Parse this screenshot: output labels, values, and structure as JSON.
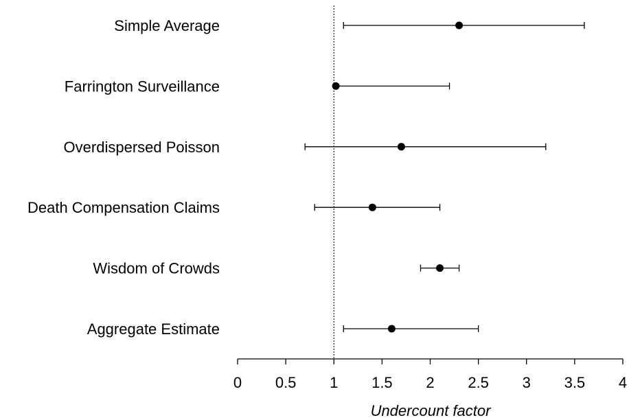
{
  "chart_data": {
    "type": "scatter",
    "title": "",
    "xlabel": "Undercount factor",
    "ylabel": "",
    "xlim": [
      0,
      4
    ],
    "xticks": [
      "0",
      "0.5",
      "1",
      "1.5",
      "2",
      "2.5",
      "3",
      "3.5",
      "4"
    ],
    "reference_line_x": 1,
    "grid": false,
    "categories": [
      "Simple Average",
      "Farrington Surveillance",
      "Overdispersed Poisson",
      "Death Compensation Claims",
      "Wisdom of Crowds",
      "Aggregate Estimate"
    ],
    "series": [
      {
        "values": [
          2.3,
          1.02,
          1.7,
          1.4,
          2.1,
          1.6
        ],
        "lower": [
          1.1,
          1.0,
          0.7,
          0.8,
          1.9,
          1.1
        ],
        "upper": [
          3.6,
          2.2,
          3.2,
          2.1,
          2.3,
          2.5
        ]
      }
    ]
  }
}
